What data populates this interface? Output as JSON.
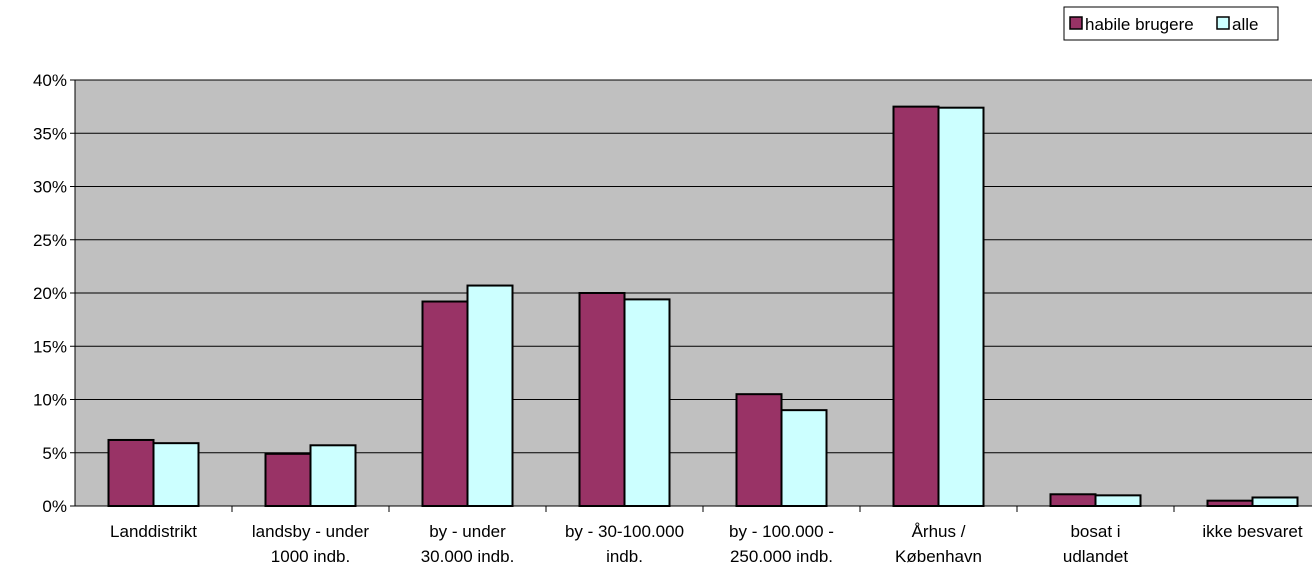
{
  "chart_data": {
    "type": "bar",
    "categories": [
      [
        "Landdistrikt"
      ],
      [
        "landsby - under",
        "1000 indb."
      ],
      [
        "by - under",
        "30.000 indb."
      ],
      [
        "by - 30-100.000",
        "indb."
      ],
      [
        "by - 100.000 -",
        "250.000 indb."
      ],
      [
        "Århus /",
        "København"
      ],
      [
        "bosat i",
        "udlandet"
      ],
      [
        "ikke besvaret"
      ]
    ],
    "series": [
      {
        "name": "habile brugere",
        "color": "#993366",
        "values": [
          0.062,
          0.049,
          0.192,
          0.2,
          0.105,
          0.375,
          0.011,
          0.005
        ]
      },
      {
        "name": "alle",
        "color": "#CCFFFF",
        "values": [
          0.059,
          0.057,
          0.207,
          0.194,
          0.09,
          0.374,
          0.01,
          0.008
        ]
      }
    ],
    "ylim": [
      0,
      0.4
    ],
    "yticks": [
      "0%",
      "5%",
      "10%",
      "15%",
      "20%",
      "25%",
      "30%",
      "35%",
      "40%"
    ],
    "ytick_values": [
      0,
      0.05,
      0.1,
      0.15,
      0.2,
      0.25,
      0.3,
      0.35,
      0.4
    ],
    "grid": true,
    "plot_background": "#C0C0C0",
    "legend_position": "top-right",
    "title": "",
    "xlabel": "",
    "ylabel": ""
  }
}
